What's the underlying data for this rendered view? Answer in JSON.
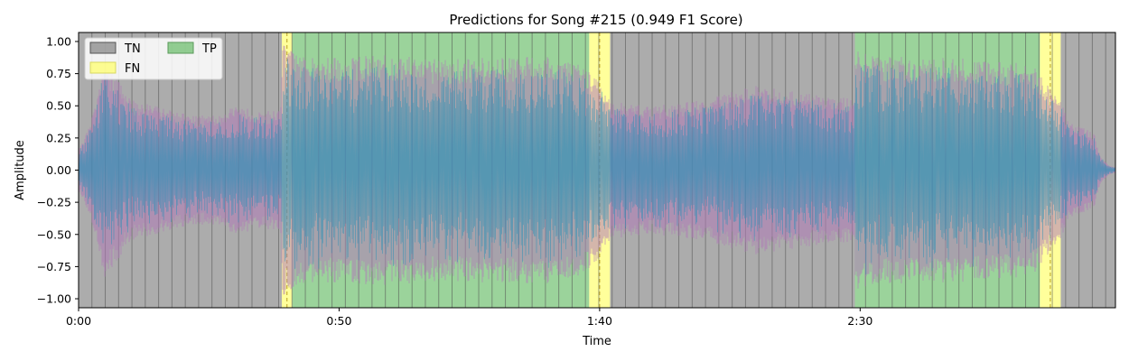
{
  "chart_data": {
    "type": "area",
    "title": "Predictions for Song #215 (0.949 F1 Score)",
    "xlabel": "Time",
    "ylabel": "Amplitude",
    "xlim": [
      0,
      199
    ],
    "ylim": [
      -1.07,
      1.07
    ],
    "x_ticks": [
      {
        "value": 0,
        "label": "0:00"
      },
      {
        "value": 50,
        "label": "0:50"
      },
      {
        "value": 100,
        "label": "1:40"
      },
      {
        "value": 150,
        "label": "2:30"
      }
    ],
    "y_ticks": [
      {
        "value": 1.0,
        "label": "1.00"
      },
      {
        "value": 0.75,
        "label": "0.75"
      },
      {
        "value": 0.5,
        "label": "0.50"
      },
      {
        "value": 0.25,
        "label": "0.25"
      },
      {
        "value": 0.0,
        "label": "0.00"
      },
      {
        "value": -0.25,
        "label": "−0.25"
      },
      {
        "value": -0.5,
        "label": "−0.50"
      },
      {
        "value": -0.75,
        "label": "−0.75"
      },
      {
        "value": -1.0,
        "label": "−1.00"
      }
    ],
    "legend": {
      "placement": "top-left",
      "entries": [
        {
          "key": "TN",
          "label": "TN",
          "color": "#808080"
        },
        {
          "key": "FN",
          "label": "FN",
          "color": "#ffff66"
        },
        {
          "key": "TP",
          "label": "TP",
          "color": "#66bb66"
        }
      ]
    },
    "segments": [
      {
        "start": 0,
        "end": 39,
        "class": "TN"
      },
      {
        "start": 39,
        "end": 41,
        "class": "FN"
      },
      {
        "start": 41,
        "end": 98,
        "class": "TP"
      },
      {
        "start": 98,
        "end": 102,
        "class": "FN"
      },
      {
        "start": 102,
        "end": 149,
        "class": "TN"
      },
      {
        "start": 149,
        "end": 184.5,
        "class": "TP"
      },
      {
        "start": 184.5,
        "end": 188.5,
        "class": "FN"
      },
      {
        "start": 188.5,
        "end": 199,
        "class": "TN"
      }
    ],
    "waveform_envelope": {
      "time": [
        0,
        2,
        5,
        10,
        15,
        20,
        25,
        30,
        35,
        38.8,
        39.2,
        41,
        45,
        50,
        60,
        70,
        80,
        90,
        97,
        101,
        102,
        110,
        120,
        130,
        140,
        148.8,
        149.2,
        155,
        165,
        175,
        183,
        186,
        188,
        190,
        193,
        195,
        196,
        197,
        198,
        199
      ],
      "amplitude": [
        0.15,
        0.3,
        0.78,
        0.5,
        0.45,
        0.4,
        0.38,
        0.45,
        0.42,
        0.42,
        0.9,
        0.85,
        0.8,
        0.8,
        0.82,
        0.78,
        0.8,
        0.8,
        0.75,
        0.6,
        0.5,
        0.45,
        0.5,
        0.6,
        0.55,
        0.5,
        0.85,
        0.8,
        0.8,
        0.78,
        0.75,
        0.6,
        0.55,
        0.35,
        0.3,
        0.25,
        0.12,
        0.06,
        0.03,
        0.02
      ]
    },
    "grid": false
  }
}
